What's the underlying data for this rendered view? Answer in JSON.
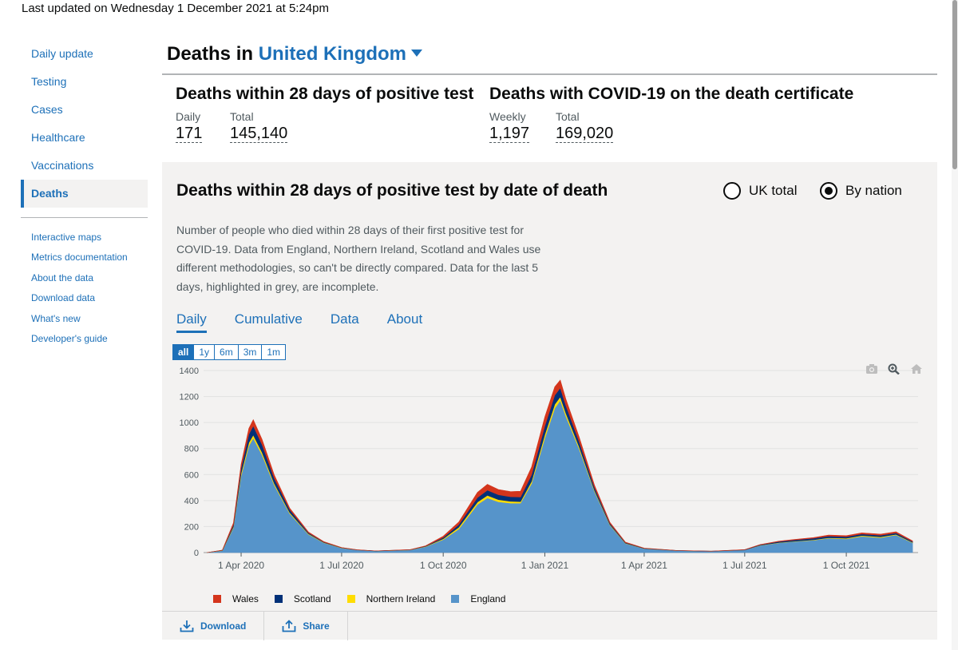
{
  "last_updated": "Last updated on Wednesday 1 December 2021 at 5:24pm",
  "sidebar": {
    "items": [
      {
        "label": "Daily update"
      },
      {
        "label": "Testing"
      },
      {
        "label": "Cases"
      },
      {
        "label": "Healthcare"
      },
      {
        "label": "Vaccinations"
      },
      {
        "label": "Deaths",
        "active": true
      }
    ],
    "links": [
      {
        "label": "Interactive maps"
      },
      {
        "label": "Metrics documentation"
      },
      {
        "label": "About the data"
      },
      {
        "label": "Download data"
      },
      {
        "label": "What's new"
      },
      {
        "label": "Developer's guide"
      }
    ]
  },
  "header": {
    "prefix": "Deaths in",
    "place": "United Kingdom"
  },
  "headline": {
    "within28": {
      "title": "Deaths within 28 days of positive test",
      "daily_label": "Daily",
      "daily_value": "171",
      "total_label": "Total",
      "total_value": "145,140"
    },
    "certificate": {
      "title": "Deaths with COVID-19 on the death certificate",
      "weekly_label": "Weekly",
      "weekly_value": "1,197",
      "total_label": "Total",
      "total_value": "169,020"
    }
  },
  "card": {
    "title": "Deaths within 28 days of positive test by date of death",
    "radio_uk": "UK total",
    "radio_nation": "By nation",
    "selected_radio": "By nation",
    "description": "Number of people who died within 28 days of their first positive test for COVID-19. Data from England, Northern Ireland, Scotland and Wales use different methodologies, so can't be directly compared. Data for the last 5 days, highlighted in grey, are incomplete.",
    "tabs": [
      {
        "label": "Daily"
      },
      {
        "label": "Cumulative"
      },
      {
        "label": "Data"
      },
      {
        "label": "About"
      }
    ],
    "active_tab": "Daily",
    "ranges": [
      {
        "label": "all"
      },
      {
        "label": "1y"
      },
      {
        "label": "6m"
      },
      {
        "label": "3m"
      },
      {
        "label": "1m"
      }
    ],
    "selected_range": "all",
    "actions": {
      "download": "Download",
      "share": "Share"
    },
    "icons": {
      "download": "download-icon",
      "share": "share-icon",
      "camera": "camera-icon",
      "zoom": "zoom-icon",
      "home": "home-icon"
    }
  },
  "chart_data": {
    "type": "area",
    "stacked": true,
    "x_unit": "date",
    "x": [
      "2020-03-01",
      "2020-03-15",
      "2020-03-25",
      "2020-04-01",
      "2020-04-08",
      "2020-04-12",
      "2020-04-20",
      "2020-05-01",
      "2020-05-15",
      "2020-06-01",
      "2020-06-15",
      "2020-07-01",
      "2020-07-15",
      "2020-08-01",
      "2020-09-01",
      "2020-09-15",
      "2020-10-01",
      "2020-10-15",
      "2020-11-01",
      "2020-11-10",
      "2020-11-20",
      "2020-12-01",
      "2020-12-10",
      "2020-12-20",
      "2021-01-01",
      "2021-01-10",
      "2021-01-15",
      "2021-01-20",
      "2021-02-01",
      "2021-02-15",
      "2021-03-01",
      "2021-03-15",
      "2021-04-01",
      "2021-05-01",
      "2021-06-01",
      "2021-07-01",
      "2021-07-15",
      "2021-08-01",
      "2021-08-15",
      "2021-09-01",
      "2021-09-15",
      "2021-10-01",
      "2021-10-15",
      "2021-11-01",
      "2021-11-15",
      "2021-11-30"
    ],
    "series": [
      {
        "name": "England",
        "color": "#5694ca",
        "values": [
          0,
          15,
          190,
          590,
          820,
          880,
          750,
          520,
          300,
          140,
          75,
          35,
          20,
          12,
          20,
          45,
          100,
          180,
          370,
          420,
          390,
          380,
          380,
          530,
          880,
          1110,
          1170,
          1050,
          800,
          470,
          210,
          70,
          30,
          15,
          10,
          20,
          55,
          75,
          85,
          95,
          110,
          105,
          125,
          115,
          135,
          75
        ]
      },
      {
        "name": "Northern Ireland",
        "color": "#ffdd00",
        "values": [
          0,
          1,
          8,
          20,
          25,
          24,
          20,
          12,
          8,
          4,
          2,
          1,
          0,
          0,
          1,
          2,
          6,
          14,
          18,
          20,
          17,
          14,
          12,
          18,
          28,
          30,
          28,
          24,
          16,
          8,
          4,
          2,
          1,
          0,
          0,
          0,
          1,
          2,
          2,
          3,
          4,
          5,
          6,
          6,
          5,
          3
        ]
      },
      {
        "name": "Scotland",
        "color": "#003078",
        "values": [
          0,
          2,
          15,
          40,
          65,
          70,
          60,
          40,
          22,
          8,
          4,
          2,
          1,
          1,
          1,
          3,
          10,
          20,
          35,
          40,
          38,
          35,
          35,
          50,
          65,
          70,
          68,
          58,
          40,
          22,
          10,
          5,
          2,
          1,
          1,
          2,
          4,
          8,
          10,
          12,
          13,
          12,
          12,
          12,
          11,
          7
        ]
      },
      {
        "name": "Wales",
        "color": "#d4351c",
        "values": [
          0,
          1,
          15,
          30,
          45,
          48,
          40,
          25,
          12,
          6,
          3,
          1,
          1,
          0,
          1,
          2,
          10,
          20,
          40,
          45,
          40,
          40,
          45,
          60,
          70,
          65,
          60,
          50,
          35,
          18,
          8,
          3,
          1,
          0,
          0,
          1,
          2,
          3,
          4,
          5,
          8,
          8,
          9,
          9,
          9,
          5
        ]
      }
    ],
    "yticks": [
      0,
      200,
      400,
      600,
      800,
      1000,
      1200,
      1400
    ],
    "ylim": [
      0,
      1400
    ],
    "xticks": [
      {
        "date": "2020-04-01",
        "label": "1 Apr 2020"
      },
      {
        "date": "2020-07-01",
        "label": "1 Jul 2020"
      },
      {
        "date": "2020-10-01",
        "label": "1 Oct 2020"
      },
      {
        "date": "2021-01-01",
        "label": "1 Jan 2021"
      },
      {
        "date": "2021-04-01",
        "label": "1 Apr 2021"
      },
      {
        "date": "2021-07-01",
        "label": "1 Jul 2021"
      },
      {
        "date": "2021-10-01",
        "label": "1 Oct 2021"
      }
    ],
    "xlim": [
      "2020-02-27",
      "2021-12-05"
    ],
    "grid": true,
    "legend_placement": "bottom",
    "legend_order": [
      "Wales",
      "Scotland",
      "Northern Ireland",
      "England"
    ]
  }
}
